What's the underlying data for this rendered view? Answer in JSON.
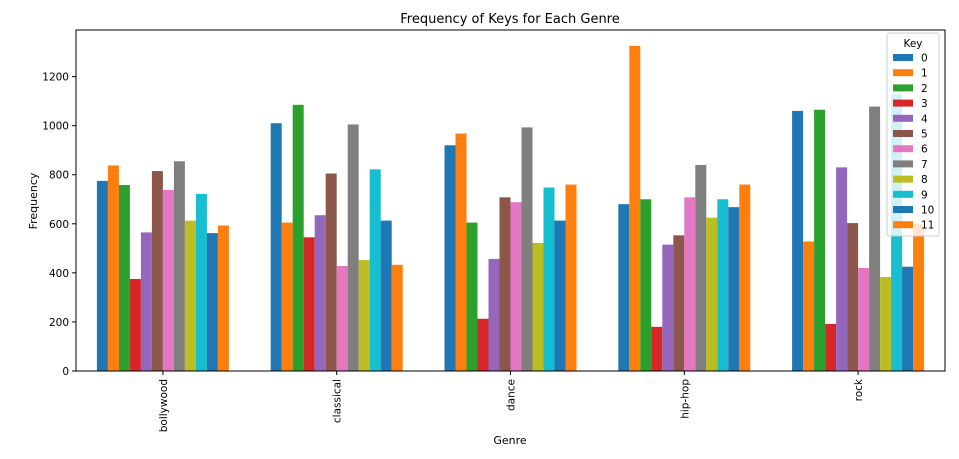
{
  "chart_data": {
    "type": "bar",
    "title": "Frequency of Keys for Each Genre",
    "xlabel": "Genre",
    "ylabel": "Frequency",
    "categories": [
      "bollywood",
      "classical",
      "dance",
      "hip-hop",
      "rock"
    ],
    "ylim": [
      0,
      1390
    ],
    "yticks": [
      0,
      200,
      400,
      600,
      800,
      1000,
      1200
    ],
    "grid": false,
    "legend": {
      "title": "Key",
      "placement": "top-right"
    },
    "series": [
      {
        "name": "0",
        "color": "#1f77b4",
        "values": [
          775,
          1010,
          920,
          680,
          1060
        ]
      },
      {
        "name": "1",
        "color": "#ff7f0e",
        "values": [
          838,
          605,
          968,
          1325,
          528
        ]
      },
      {
        "name": "2",
        "color": "#2ca02c",
        "values": [
          758,
          1085,
          605,
          700,
          1065
        ]
      },
      {
        "name": "3",
        "color": "#d62728",
        "values": [
          375,
          545,
          213,
          180,
          192
        ]
      },
      {
        "name": "4",
        "color": "#9467bd",
        "values": [
          565,
          635,
          457,
          515,
          830
        ]
      },
      {
        "name": "5",
        "color": "#8c564b",
        "values": [
          815,
          805,
          708,
          553,
          603
        ]
      },
      {
        "name": "6",
        "color": "#e377c2",
        "values": [
          738,
          428,
          688,
          708,
          420
        ]
      },
      {
        "name": "7",
        "color": "#7f7f7f",
        "values": [
          855,
          1005,
          993,
          840,
          1078
        ]
      },
      {
        "name": "8",
        "color": "#bcbd22",
        "values": [
          613,
          452,
          522,
          625,
          383
        ]
      },
      {
        "name": "9",
        "color": "#17becf",
        "values": [
          722,
          822,
          748,
          700,
          1128
        ]
      },
      {
        "name": "10",
        "color": "#1f77b4",
        "values": [
          562,
          613,
          613,
          668,
          425
        ]
      },
      {
        "name": "11",
        "color": "#ff7f0e",
        "values": [
          593,
          433,
          760,
          760,
          600
        ]
      }
    ]
  }
}
